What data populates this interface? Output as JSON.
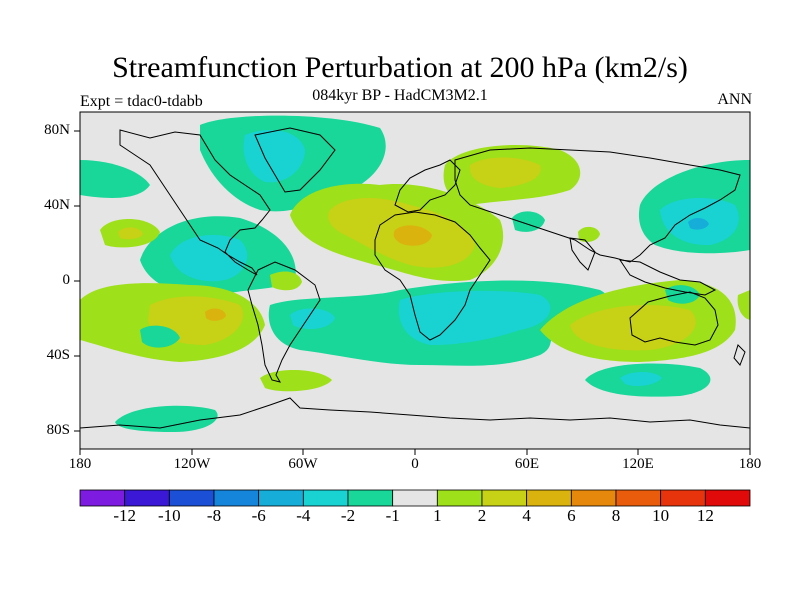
{
  "title": "Streamfunction Perturbation at 200 hPa (km2/s)",
  "subtitle": "084kyr BP - HadCM3M2.1",
  "experiment_label": "Expt = tdac0-tdabb",
  "season_label": "ANN",
  "axes": {
    "y_ticks": [
      "80N",
      "40N",
      "0",
      "40S",
      "80S"
    ],
    "x_ticks": [
      "180",
      "120W",
      "60W",
      "0",
      "60E",
      "120E",
      "180"
    ]
  },
  "colorbar": {
    "labels": [
      "-12",
      "-10",
      "-8",
      "-6",
      "-4",
      "-2",
      "-1",
      "1",
      "2",
      "4",
      "6",
      "8",
      "10",
      "12"
    ],
    "colors": [
      "#7d1be0",
      "#3a18d6",
      "#1a4fd6",
      "#1585dc",
      "#16aed9",
      "#19d3d3",
      "#19d699",
      "#e5e5e5",
      "#9ee01a",
      "#c7d115",
      "#dbb30f",
      "#e5880c",
      "#e85c0b",
      "#e8340d",
      "#e00a0a"
    ]
  },
  "colors": {
    "neutral": "#e5e5e5",
    "neg1": "#19d699",
    "neg2": "#19d3d3",
    "pos1": "#9ee01a",
    "pos2": "#c7d115",
    "pos3": "#dbb30f"
  }
}
